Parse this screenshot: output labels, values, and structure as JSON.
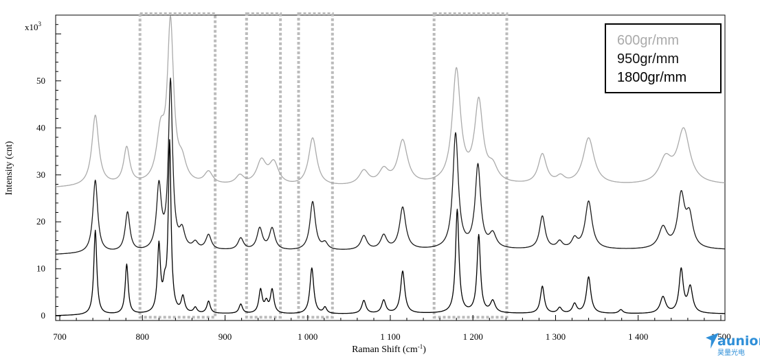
{
  "chart_data": {
    "type": "line",
    "xlabel": "Raman Shift (cm",
    "xlabel_sup": "-1",
    "xlabel_end": ")",
    "ylabel": "Intensity (cnt)",
    "y_multiplier": "x10",
    "y_multiplier_exp": "3",
    "xlim": [
      695,
      1505
    ],
    "ylim": [
      -1,
      64
    ],
    "x_ticks": [
      {
        "value": 700,
        "label": "700"
      },
      {
        "value": 800,
        "label": "800"
      },
      {
        "value": 900,
        "label": "900"
      },
      {
        "value": 1000,
        "label": "1 000"
      },
      {
        "value": 1100,
        "label": "1 100"
      },
      {
        "value": 1200,
        "label": "1 200"
      },
      {
        "value": 1300,
        "label": "1 300"
      },
      {
        "value": 1400,
        "label": "1 400"
      },
      {
        "value": 1500,
        "label": "1 500"
      }
    ],
    "y_ticks": [
      {
        "value": 0,
        "label": "0"
      },
      {
        "value": 10,
        "label": "10"
      },
      {
        "value": 20,
        "label": "20"
      },
      {
        "value": 30,
        "label": "30"
      },
      {
        "value": 40,
        "label": "40"
      },
      {
        "value": 50,
        "label": "50"
      }
    ],
    "grid": false,
    "legend_position": "top-right",
    "series": [
      {
        "name": "600gr/mm",
        "color": "#aaaaaa",
        "baseline": [
          [
            695,
            27.2
          ],
          [
            760,
            27.5
          ],
          [
            900,
            27.5
          ],
          [
            1000,
            27.2
          ],
          [
            1200,
            27.8
          ],
          [
            1300,
            27.5
          ],
          [
            1505,
            27.8
          ]
        ],
        "peaks": [
          {
            "x": 743,
            "h": 15.0,
            "w": 5
          },
          {
            "x": 781,
            "h": 7.8,
            "w": 4.5
          },
          {
            "x": 822,
            "h": 10.0,
            "w": 6
          },
          {
            "x": 834,
            "h": 33.5,
            "w": 4.5
          },
          {
            "x": 848,
            "h": 4.0,
            "w": 6
          },
          {
            "x": 880,
            "h": 2.6,
            "w": 6
          },
          {
            "x": 918,
            "h": 1.9,
            "w": 6
          },
          {
            "x": 944,
            "h": 5.0,
            "w": 7
          },
          {
            "x": 959,
            "h": 4.6,
            "w": 7
          },
          {
            "x": 1006,
            "h": 10.3,
            "w": 6
          },
          {
            "x": 1068,
            "h": 3.0,
            "w": 7
          },
          {
            "x": 1092,
            "h": 3.0,
            "w": 7
          },
          {
            "x": 1115,
            "h": 9.3,
            "w": 7
          },
          {
            "x": 1180,
            "h": 24.0,
            "w": 6
          },
          {
            "x": 1207,
            "h": 17.0,
            "w": 6
          },
          {
            "x": 1224,
            "h": 3.0,
            "w": 7
          },
          {
            "x": 1284,
            "h": 6.4,
            "w": 6
          },
          {
            "x": 1306,
            "h": 1.5,
            "w": 6
          },
          {
            "x": 1340,
            "h": 10.0,
            "w": 8
          },
          {
            "x": 1433,
            "h": 5.0,
            "w": 9
          },
          {
            "x": 1455,
            "h": 11.5,
            "w": 9
          }
        ]
      },
      {
        "name": "950gr/mm",
        "color": "#1a1a1a",
        "baseline": [
          [
            695,
            13.0
          ],
          [
            760,
            13.3
          ],
          [
            900,
            13.8
          ],
          [
            1000,
            13.7
          ],
          [
            1200,
            14.0
          ],
          [
            1300,
            14.0
          ],
          [
            1505,
            14.0
          ]
        ],
        "peaks": [
          {
            "x": 743,
            "h": 15.5,
            "w": 3.5
          },
          {
            "x": 782,
            "h": 8.4,
            "w": 3.5
          },
          {
            "x": 820,
            "h": 13.5,
            "w": 3.5
          },
          {
            "x": 834,
            "h": 35.8,
            "w": 3.0
          },
          {
            "x": 848,
            "h": 3.8,
            "w": 4
          },
          {
            "x": 864,
            "h": 1.5,
            "w": 4
          },
          {
            "x": 880,
            "h": 3.2,
            "w": 4
          },
          {
            "x": 919,
            "h": 2.5,
            "w": 4
          },
          {
            "x": 942,
            "h": 4.6,
            "w": 4
          },
          {
            "x": 957,
            "h": 4.6,
            "w": 4
          },
          {
            "x": 1006,
            "h": 10.4,
            "w": 4
          },
          {
            "x": 1021,
            "h": 1.4,
            "w": 4
          },
          {
            "x": 1068,
            "h": 3.0,
            "w": 4.5
          },
          {
            "x": 1092,
            "h": 3.0,
            "w": 4.5
          },
          {
            "x": 1115,
            "h": 9.0,
            "w": 4.5
          },
          {
            "x": 1179,
            "h": 24.5,
            "w": 4
          },
          {
            "x": 1206,
            "h": 17.6,
            "w": 4
          },
          {
            "x": 1224,
            "h": 3.0,
            "w": 5
          },
          {
            "x": 1284,
            "h": 7.0,
            "w": 4
          },
          {
            "x": 1305,
            "h": 1.5,
            "w": 4
          },
          {
            "x": 1323,
            "h": 2.0,
            "w": 4
          },
          {
            "x": 1340,
            "h": 10.2,
            "w": 5
          },
          {
            "x": 1430,
            "h": 4.5,
            "w": 6
          },
          {
            "x": 1452,
            "h": 11.0,
            "w": 5
          },
          {
            "x": 1462,
            "h": 6.5,
            "w": 5
          }
        ]
      },
      {
        "name": "1800gr/mm",
        "color": "#000000",
        "baseline": [
          [
            695,
            0.0
          ],
          [
            760,
            0.2
          ],
          [
            900,
            0.4
          ],
          [
            1000,
            0.3
          ],
          [
            1200,
            0.5
          ],
          [
            1300,
            0.4
          ],
          [
            1505,
            0.4
          ]
        ],
        "peaks": [
          {
            "x": 743,
            "h": 18.0,
            "w": 2.2
          },
          {
            "x": 781,
            "h": 10.6,
            "w": 2.2
          },
          {
            "x": 820,
            "h": 14.2,
            "w": 2.2
          },
          {
            "x": 827,
            "h": 4.5,
            "w": 2.5
          },
          {
            "x": 833,
            "h": 36.0,
            "w": 2.0
          },
          {
            "x": 849,
            "h": 3.4,
            "w": 2.5
          },
          {
            "x": 864,
            "h": 1.2,
            "w": 2.5
          },
          {
            "x": 880,
            "h": 2.6,
            "w": 2.5
          },
          {
            "x": 919,
            "h": 2.0,
            "w": 2.5
          },
          {
            "x": 943,
            "h": 5.0,
            "w": 2.5
          },
          {
            "x": 950,
            "h": 2.2,
            "w": 2.5
          },
          {
            "x": 957,
            "h": 5.0,
            "w": 2.5
          },
          {
            "x": 1005,
            "h": 9.8,
            "w": 2.8
          },
          {
            "x": 1021,
            "h": 1.3,
            "w": 2.5
          },
          {
            "x": 1068,
            "h": 2.8,
            "w": 3
          },
          {
            "x": 1092,
            "h": 2.8,
            "w": 3
          },
          {
            "x": 1115,
            "h": 9.0,
            "w": 3
          },
          {
            "x": 1181,
            "h": 22.0,
            "w": 2.5
          },
          {
            "x": 1207,
            "h": 16.5,
            "w": 2.5
          },
          {
            "x": 1224,
            "h": 2.5,
            "w": 3.5
          },
          {
            "x": 1284,
            "h": 5.8,
            "w": 2.8
          },
          {
            "x": 1305,
            "h": 1.2,
            "w": 3
          },
          {
            "x": 1323,
            "h": 2.0,
            "w": 3
          },
          {
            "x": 1340,
            "h": 7.8,
            "w": 3.2
          },
          {
            "x": 1379,
            "h": 0.8,
            "w": 3
          },
          {
            "x": 1430,
            "h": 3.5,
            "w": 4
          },
          {
            "x": 1452,
            "h": 9.2,
            "w": 3
          },
          {
            "x": 1463,
            "h": 5.5,
            "w": 3.5
          }
        ]
      }
    ],
    "highlight_regions": [
      {
        "x0": 797,
        "x1": 888,
        "y0": -0.3,
        "y1": 64.5
      },
      {
        "x0": 926,
        "x1": 967,
        "y0": -0.3,
        "y1": 64.5
      },
      {
        "x0": 989,
        "x1": 1030,
        "y0": -0.3,
        "y1": 64.5
      },
      {
        "x0": 1153,
        "x1": 1241,
        "y0": -0.3,
        "y1": 64.5
      }
    ],
    "highlight_color": "#bbbbbb",
    "legend": {
      "colors": [
        "#aaaaaa",
        "#111111",
        "#000000"
      ]
    }
  },
  "logo": {
    "text": "aunion",
    "subtext": "昊量光电",
    "color": "#2f8fd8"
  }
}
